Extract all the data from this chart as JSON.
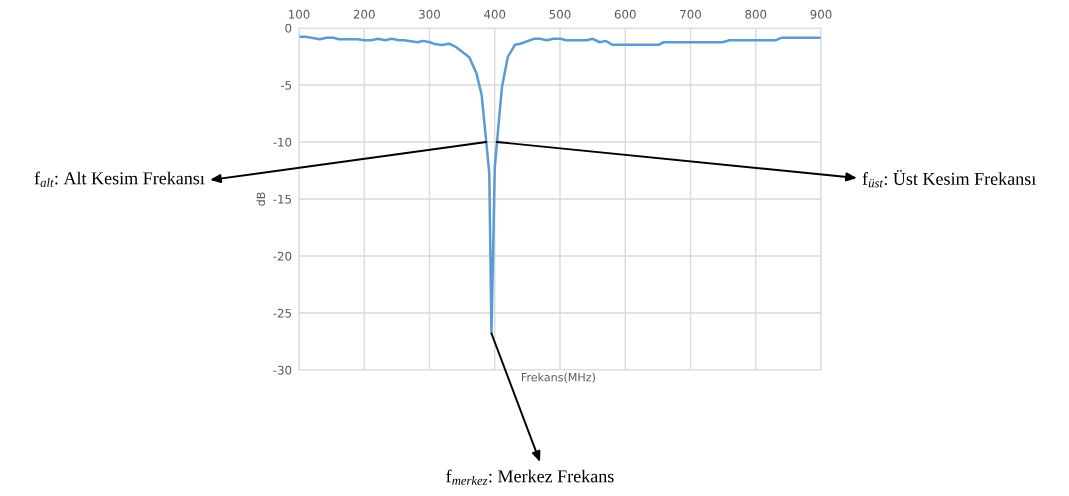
{
  "chart_data": {
    "type": "line",
    "xlabel": "Frekans(MHz)",
    "ylabel": "dB",
    "x": [
      100,
      110,
      132,
      142,
      153,
      161,
      190,
      200,
      211,
      221,
      232,
      242,
      253,
      261,
      282,
      290,
      301,
      308,
      319,
      330,
      340,
      361,
      372,
      380,
      387,
      391.6,
      395,
      400,
      405,
      411,
      420,
      431,
      439,
      460,
      469,
      480,
      490,
      501,
      509,
      541,
      550,
      561,
      570,
      580,
      651,
      659,
      749,
      760,
      831,
      839,
      900
    ],
    "series": [
      {
        "color": "#5b9bd5",
        "values": [
          -0.76,
          -0.76,
          -0.98,
          -0.86,
          -0.86,
          -0.98,
          -0.98,
          -1.07,
          -1.07,
          -0.95,
          -1.07,
          -0.95,
          -1.07,
          -1.07,
          -1.25,
          -1.13,
          -1.25,
          -1.41,
          -1.5,
          -1.38,
          -1.65,
          -2.57,
          -3.98,
          -5.9,
          -10,
          -12.75,
          -26.8,
          -12.3,
          -9,
          -5.2,
          -2.54,
          -1.47,
          -1.38,
          -0.95,
          -0.95,
          -1.07,
          -0.95,
          -0.95,
          -1.07,
          -1.07,
          -0.95,
          -1.25,
          -1.13,
          -1.47,
          -1.47,
          -1.25,
          -1.25,
          -1.07,
          -1.07,
          -0.86,
          -0.86
        ]
      }
    ],
    "xlim": [
      100,
      900
    ],
    "xticks": [
      100,
      200,
      300,
      400,
      500,
      600,
      700,
      800,
      900
    ],
    "ylim": [
      -30,
      0
    ],
    "yticks": [
      -30,
      -25,
      -20,
      -15,
      -10,
      -5,
      0
    ],
    "grid": true,
    "legend": false,
    "marker": "none",
    "line_style": "solid",
    "annotations": [
      {
        "text": "f$_{alt}$: Alt Kesim Frekansı",
        "x": 387,
        "y": -10
      },
      {
        "text": "f$_{üst}$: Üst Kesim Frekansı",
        "x": 403,
        "y": -10
      },
      {
        "text": "f$_{merkez}$: Merkez Frekans",
        "x": 395,
        "y": -26.8
      }
    ]
  }
}
